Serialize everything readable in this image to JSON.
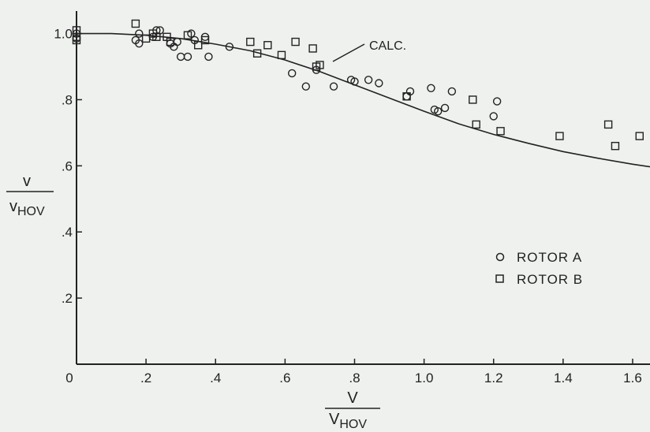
{
  "chart_data": {
    "type": "scatter",
    "title": "",
    "xlim": [
      0,
      1.65
    ],
    "ylim": [
      0,
      1.03
    ],
    "x_ticks": [
      "0",
      ".2",
      ".4",
      ".6",
      ".8",
      "1.0",
      "1.2",
      "1.4",
      "1.6"
    ],
    "y_ticks": [
      ".2",
      ".4",
      ".6",
      ".8",
      "1.0"
    ],
    "xlabel": {
      "numerator": "V",
      "denominator": "V",
      "denominator_sub": "HOV"
    },
    "ylabel": {
      "numerator": "v",
      "denominator": "v",
      "denominator_sub": "HOV"
    },
    "grid": false,
    "legend_position": "right-center",
    "annotation": "CALC.",
    "series": [
      {
        "name": "ROTOR A",
        "marker": "circle",
        "points": [
          [
            0.0,
            0.985
          ],
          [
            0.0,
            1.0
          ],
          [
            0.17,
            0.98
          ],
          [
            0.18,
            1.0
          ],
          [
            0.18,
            0.97
          ],
          [
            0.22,
            0.99
          ],
          [
            0.23,
            1.01
          ],
          [
            0.24,
            1.01
          ],
          [
            0.27,
            0.97
          ],
          [
            0.28,
            0.96
          ],
          [
            0.29,
            0.975
          ],
          [
            0.3,
            0.93
          ],
          [
            0.32,
            0.93
          ],
          [
            0.33,
            1.0
          ],
          [
            0.34,
            0.98
          ],
          [
            0.37,
            0.99
          ],
          [
            0.38,
            0.93
          ],
          [
            0.44,
            0.96
          ],
          [
            0.62,
            0.88
          ],
          [
            0.66,
            0.84
          ],
          [
            0.69,
            0.89
          ],
          [
            0.74,
            0.84
          ],
          [
            0.79,
            0.86
          ],
          [
            0.8,
            0.855
          ],
          [
            0.84,
            0.86
          ],
          [
            0.87,
            0.85
          ],
          [
            0.95,
            0.81
          ],
          [
            0.96,
            0.825
          ],
          [
            1.02,
            0.835
          ],
          [
            1.03,
            0.77
          ],
          [
            1.04,
            0.765
          ],
          [
            1.06,
            0.775
          ],
          [
            1.08,
            0.825
          ],
          [
            1.2,
            0.75
          ],
          [
            1.21,
            0.795
          ]
        ]
      },
      {
        "name": "ROTOR B",
        "marker": "square",
        "points": [
          [
            0.0,
            0.98
          ],
          [
            0.0,
            0.99
          ],
          [
            0.0,
            1.01
          ],
          [
            0.17,
            1.03
          ],
          [
            0.2,
            0.985
          ],
          [
            0.22,
            1.0
          ],
          [
            0.23,
            0.99
          ],
          [
            0.26,
            0.99
          ],
          [
            0.27,
            0.975
          ],
          [
            0.32,
            0.995
          ],
          [
            0.35,
            0.965
          ],
          [
            0.37,
            0.98
          ],
          [
            0.5,
            0.975
          ],
          [
            0.52,
            0.94
          ],
          [
            0.55,
            0.965
          ],
          [
            0.59,
            0.935
          ],
          [
            0.63,
            0.975
          ],
          [
            0.68,
            0.955
          ],
          [
            0.69,
            0.9
          ],
          [
            0.7,
            0.905
          ],
          [
            0.95,
            0.81
          ],
          [
            1.14,
            0.8
          ],
          [
            1.15,
            0.725
          ],
          [
            1.22,
            0.705
          ],
          [
            1.39,
            0.69
          ],
          [
            1.53,
            0.725
          ],
          [
            1.55,
            0.66
          ],
          [
            1.62,
            0.69
          ]
        ]
      }
    ],
    "curve": {
      "name": "CALC.",
      "x": [
        0.0,
        0.1,
        0.2,
        0.3,
        0.4,
        0.5,
        0.6,
        0.7,
        0.8,
        0.9,
        1.0,
        1.1,
        1.2,
        1.3,
        1.4,
        1.5,
        1.6,
        1.65
      ],
      "y": [
        1.0,
        1.0,
        0.995,
        0.985,
        0.968,
        0.948,
        0.92,
        0.885,
        0.845,
        0.805,
        0.765,
        0.727,
        0.695,
        0.668,
        0.643,
        0.623,
        0.605,
        0.597
      ]
    }
  }
}
